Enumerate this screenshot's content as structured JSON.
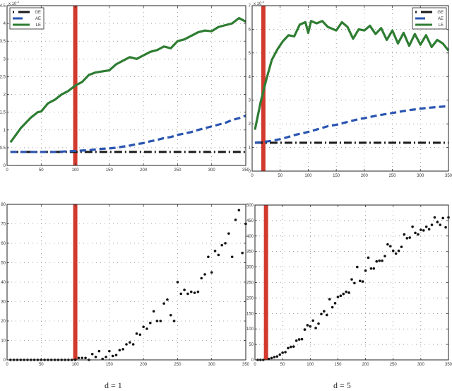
{
  "captions": {
    "left": "d = 1",
    "right": "d = 5"
  },
  "colors": {
    "GE": "#1a1a1a",
    "AE": "#2a55b0",
    "LE": "#2e7d32",
    "marker": "#d23a2e",
    "scatter": "#111111",
    "grid": "#666666"
  },
  "chart_data": [
    {
      "id": "top-left",
      "type": "line",
      "title": "",
      "xlabel": "",
      "ylabel": "",
      "y_scale_label": "x 10^-3",
      "xlim": [
        0,
        350
      ],
      "ylim": [
        0,
        4.5
      ],
      "xticks": [
        0,
        50,
        100,
        150,
        200,
        250,
        300,
        350
      ],
      "yticks": [
        0,
        0.5,
        1,
        1.5,
        2,
        2.5,
        3,
        3.5,
        4,
        4.5
      ],
      "ytick_labels": [
        "0",
        "0.5",
        "1",
        "1.5",
        "2",
        "2.5",
        "3",
        "3.5",
        "4",
        "4.5"
      ],
      "grid": true,
      "legend": {
        "position": "upper left",
        "entries": [
          "GE",
          "AE",
          "LE"
        ]
      },
      "vertical_marker_x": 100,
      "x": [
        5,
        20,
        35,
        45,
        50,
        60,
        70,
        80,
        90,
        100,
        110,
        120,
        130,
        140,
        150,
        160,
        170,
        180,
        190,
        200,
        210,
        220,
        230,
        240,
        250,
        260,
        270,
        280,
        290,
        300,
        310,
        320,
        330,
        340,
        350
      ],
      "series": [
        {
          "name": "GE",
          "style": "dash-dot",
          "values": [
            0.38,
            0.38,
            0.38,
            0.38,
            0.38,
            0.38,
            0.38,
            0.38,
            0.38,
            0.38,
            0.38,
            0.38,
            0.38,
            0.38,
            0.38,
            0.38,
            0.38,
            0.38,
            0.38,
            0.38,
            0.38,
            0.38,
            0.38,
            0.38,
            0.38,
            0.38,
            0.38,
            0.38,
            0.38,
            0.38,
            0.38,
            0.38,
            0.38,
            0.38,
            0.38
          ]
        },
        {
          "name": "AE",
          "style": "dashed",
          "values": [
            0.38,
            0.38,
            0.38,
            0.38,
            0.38,
            0.38,
            0.38,
            0.39,
            0.4,
            0.41,
            0.42,
            0.43,
            0.45,
            0.47,
            0.48,
            0.5,
            0.53,
            0.56,
            0.6,
            0.63,
            0.68,
            0.72,
            0.77,
            0.8,
            0.86,
            0.9,
            0.94,
            1.0,
            1.05,
            1.1,
            1.15,
            1.2,
            1.28,
            1.33,
            1.4
          ]
        },
        {
          "name": "LE",
          "style": "solid",
          "values": [
            0.65,
            1.05,
            1.35,
            1.5,
            1.52,
            1.75,
            1.85,
            2.0,
            2.1,
            2.25,
            2.35,
            2.55,
            2.62,
            2.65,
            2.68,
            2.85,
            2.95,
            3.05,
            3.0,
            3.1,
            3.2,
            3.25,
            3.35,
            3.3,
            3.5,
            3.55,
            3.65,
            3.75,
            3.8,
            3.78,
            3.9,
            3.95,
            4.0,
            4.15,
            4.05
          ]
        }
      ]
    },
    {
      "id": "top-right",
      "type": "line",
      "title": "",
      "xlabel": "",
      "ylabel": "",
      "y_scale_label": "x 10^-3",
      "xlim": [
        0,
        350
      ],
      "ylim": [
        0,
        7
      ],
      "xticks": [
        0,
        50,
        100,
        150,
        200,
        250,
        300,
        350
      ],
      "yticks": [
        0,
        1,
        2,
        3,
        4,
        5,
        6,
        7
      ],
      "ytick_labels": [
        "0",
        "1",
        "2",
        "3",
        "4",
        "5",
        "6",
        "7"
      ],
      "grid": true,
      "legend": {
        "position": "upper right",
        "entries": [
          "GE",
          "AE",
          "LE"
        ]
      },
      "vertical_marker_x": 20,
      "x": [
        5,
        15,
        25,
        35,
        45,
        55,
        65,
        75,
        85,
        95,
        100,
        105,
        115,
        125,
        135,
        150,
        160,
        170,
        180,
        190,
        200,
        210,
        220,
        230,
        240,
        250,
        260,
        270,
        280,
        290,
        300,
        310,
        320,
        330,
        340,
        350
      ],
      "series": [
        {
          "name": "GE",
          "style": "dash-dot",
          "values": [
            1.2,
            1.2,
            1.2,
            1.2,
            1.2,
            1.2,
            1.2,
            1.2,
            1.2,
            1.2,
            1.2,
            1.2,
            1.2,
            1.2,
            1.2,
            1.2,
            1.2,
            1.2,
            1.2,
            1.2,
            1.2,
            1.2,
            1.2,
            1.2,
            1.2,
            1.2,
            1.2,
            1.2,
            1.2,
            1.2,
            1.2,
            1.2,
            1.2,
            1.2,
            1.2,
            1.2
          ]
        },
        {
          "name": "AE",
          "style": "dashed",
          "values": [
            1.2,
            1.22,
            1.25,
            1.28,
            1.33,
            1.38,
            1.45,
            1.52,
            1.58,
            1.63,
            1.66,
            1.69,
            1.76,
            1.83,
            1.9,
            1.96,
            2.02,
            2.08,
            2.14,
            2.2,
            2.24,
            2.29,
            2.34,
            2.38,
            2.42,
            2.46,
            2.5,
            2.54,
            2.58,
            2.61,
            2.64,
            2.67,
            2.69,
            2.71,
            2.73,
            2.75
          ]
        },
        {
          "name": "LE",
          "style": "solid",
          "values": [
            1.75,
            2.9,
            3.85,
            4.7,
            5.15,
            5.5,
            5.75,
            5.7,
            6.2,
            6.3,
            5.85,
            6.35,
            6.25,
            6.35,
            6.1,
            5.95,
            6.3,
            6.1,
            5.6,
            6.0,
            5.95,
            6.15,
            5.8,
            6.05,
            5.55,
            5.95,
            5.4,
            5.85,
            5.3,
            5.8,
            5.35,
            5.75,
            5.25,
            5.55,
            5.4,
            5.1
          ]
        }
      ]
    },
    {
      "id": "bottom-left",
      "type": "scatter",
      "title": "",
      "xlabel": "",
      "ylabel": "",
      "xlim": [
        0,
        350
      ],
      "ylim": [
        0,
        80
      ],
      "xticks": [
        0,
        50,
        100,
        150,
        200,
        250,
        300,
        350
      ],
      "yticks": [
        0,
        10,
        20,
        30,
        40,
        50,
        60,
        70,
        80
      ],
      "ytick_labels": [
        "0",
        "10",
        "20",
        "30",
        "40",
        "50",
        "60",
        "70",
        "80"
      ],
      "grid": true,
      "vertical_marker_x": 100,
      "points": [
        [
          5,
          0
        ],
        [
          10,
          0
        ],
        [
          15,
          0
        ],
        [
          20,
          0
        ],
        [
          25,
          0
        ],
        [
          30,
          0
        ],
        [
          35,
          0
        ],
        [
          40,
          0
        ],
        [
          45,
          0
        ],
        [
          50,
          0
        ],
        [
          55,
          0
        ],
        [
          60,
          0
        ],
        [
          65,
          0
        ],
        [
          70,
          0
        ],
        [
          75,
          0
        ],
        [
          80,
          0
        ],
        [
          85,
          0
        ],
        [
          90,
          0
        ],
        [
          95,
          0
        ],
        [
          100,
          0
        ],
        [
          105,
          1
        ],
        [
          110,
          1
        ],
        [
          115,
          1
        ],
        [
          120,
          0
        ],
        [
          125,
          3
        ],
        [
          130,
          1.5
        ],
        [
          135,
          4.5
        ],
        [
          140,
          0.5
        ],
        [
          145,
          1.5
        ],
        [
          150,
          4.5
        ],
        [
          155,
          2
        ],
        [
          160,
          2.5
        ],
        [
          165,
          5
        ],
        [
          170,
          5.5
        ],
        [
          175,
          8
        ],
        [
          180,
          9
        ],
        [
          185,
          8
        ],
        [
          190,
          13.5
        ],
        [
          195,
          13
        ],
        [
          200,
          17
        ],
        [
          205,
          16
        ],
        [
          210,
          19
        ],
        [
          215,
          25
        ],
        [
          220,
          20
        ],
        [
          225,
          20
        ],
        [
          230,
          29
        ],
        [
          235,
          31
        ],
        [
          240,
          23
        ],
        [
          245,
          20
        ],
        [
          250,
          40
        ],
        [
          255,
          34
        ],
        [
          260,
          36
        ],
        [
          265,
          34
        ],
        [
          270,
          35
        ],
        [
          275,
          34.5
        ],
        [
          280,
          35
        ],
        [
          285,
          42
        ],
        [
          290,
          44
        ],
        [
          295,
          53
        ],
        [
          300,
          45
        ],
        [
          305,
          56
        ],
        [
          310,
          54
        ],
        [
          315,
          59
        ],
        [
          320,
          60
        ],
        [
          325,
          65
        ],
        [
          330,
          53
        ],
        [
          335,
          72
        ],
        [
          340,
          77
        ],
        [
          345,
          55
        ],
        [
          350,
          70
        ]
      ]
    },
    {
      "id": "bottom-right",
      "type": "scatter",
      "title": "",
      "xlabel": "",
      "ylabel": "",
      "xlim": [
        0,
        350
      ],
      "ylim": [
        0,
        500
      ],
      "xticks": [
        0,
        50,
        100,
        150,
        200,
        250,
        300,
        350
      ],
      "yticks": [
        0,
        50,
        100,
        150,
        200,
        250,
        300,
        350,
        400,
        450,
        500
      ],
      "ytick_labels": [
        "0",
        "50",
        "100",
        "150",
        "200",
        "250",
        "300",
        "350",
        "400",
        "450",
        "500"
      ],
      "grid": true,
      "vertical_marker_x": 20,
      "points": [
        [
          5,
          0
        ],
        [
          10,
          0
        ],
        [
          15,
          0
        ],
        [
          25,
          3
        ],
        [
          30,
          6
        ],
        [
          35,
          9
        ],
        [
          40,
          11
        ],
        [
          45,
          17
        ],
        [
          50,
          23
        ],
        [
          55,
          25
        ],
        [
          60,
          38
        ],
        [
          65,
          42
        ],
        [
          70,
          43
        ],
        [
          75,
          62
        ],
        [
          80,
          66
        ],
        [
          85,
          67
        ],
        [
          90,
          98
        ],
        [
          95,
          112
        ],
        [
          100,
          108
        ],
        [
          105,
          127
        ],
        [
          110,
          103
        ],
        [
          115,
          117
        ],
        [
          120,
          148
        ],
        [
          125,
          157
        ],
        [
          130,
          145
        ],
        [
          135,
          196
        ],
        [
          140,
          170
        ],
        [
          145,
          183
        ],
        [
          150,
          203
        ],
        [
          155,
          207
        ],
        [
          160,
          213
        ],
        [
          165,
          220
        ],
        [
          170,
          217
        ],
        [
          175,
          260
        ],
        [
          180,
          248
        ],
        [
          185,
          300
        ],
        [
          190,
          255
        ],
        [
          195,
          253
        ],
        [
          200,
          288
        ],
        [
          205,
          330
        ],
        [
          210,
          295
        ],
        [
          215,
          295
        ],
        [
          220,
          318
        ],
        [
          225,
          320
        ],
        [
          230,
          320
        ],
        [
          235,
          335
        ],
        [
          240,
          373
        ],
        [
          245,
          367
        ],
        [
          250,
          352
        ],
        [
          255,
          343
        ],
        [
          260,
          352
        ],
        [
          265,
          365
        ],
        [
          270,
          405
        ],
        [
          275,
          393
        ],
        [
          280,
          395
        ],
        [
          285,
          430
        ],
        [
          290,
          410
        ],
        [
          295,
          405
        ],
        [
          300,
          420
        ],
        [
          305,
          418
        ],
        [
          310,
          430
        ],
        [
          315,
          422
        ],
        [
          320,
          436
        ],
        [
          325,
          460
        ],
        [
          330,
          445
        ],
        [
          335,
          436
        ],
        [
          340,
          458
        ],
        [
          345,
          428
        ],
        [
          350,
          460
        ]
      ]
    }
  ]
}
